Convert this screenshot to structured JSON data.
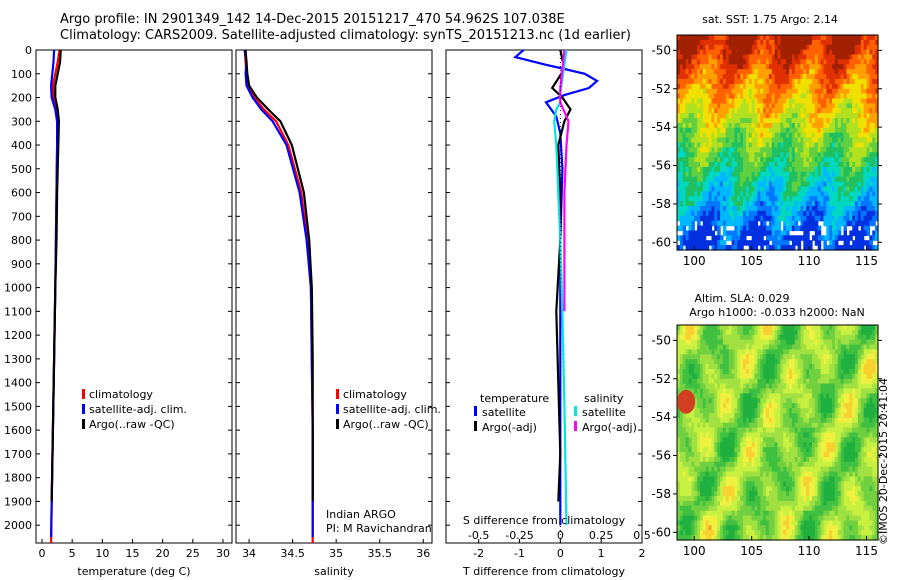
{
  "header": {
    "line1": "Argo profile: IN 2901349_142 14-Dec-2015 20151217_470 54.962S 107.038E",
    "line2": "Climatology: CARS2009. Satellite-adjusted climatology: synTS_20151213.nc (1d earlier)"
  },
  "colors": {
    "clim": "#ff0000",
    "sat": "#0000ff",
    "argo": "#000000",
    "cyan": "#00e5e5",
    "magenta": "#ff00ff"
  },
  "chart_data": [
    {
      "type": "line",
      "name": "temperature-profile",
      "xlabel": "temperature (deg C)",
      "ylabel": "",
      "xlim": [
        -1,
        31.5
      ],
      "ylim": [
        2075,
        0
      ],
      "xticks": [
        "0",
        "5",
        "10",
        "15",
        "20",
        "25",
        "30"
      ],
      "yticks": [
        "0",
        "100",
        "200",
        "300",
        "400",
        "500",
        "600",
        "700",
        "800",
        "900",
        "1000",
        "1100",
        "1200",
        "1300",
        "1400",
        "1500",
        "1600",
        "1700",
        "1800",
        "1900",
        "2000"
      ],
      "legend": {
        "position": "lower-center",
        "entries": [
          "climatology",
          "satellite-adj. clim.",
          "Argo(..raw -QC)"
        ]
      },
      "series": [
        {
          "name": "climatology",
          "color": "#ff0000",
          "x": [
            2.9,
            2.6,
            2.2,
            1.8,
            1.9,
            2.3,
            2.5,
            2.5,
            2.4,
            2.3,
            2.2,
            2.0,
            1.8,
            1.6,
            1.5
          ],
          "y": [
            0,
            50,
            100,
            150,
            200,
            250,
            300,
            400,
            600,
            800,
            1000,
            1300,
            1600,
            1900,
            2075
          ]
        },
        {
          "name": "satellite-adj. clim.",
          "color": "#0000ff",
          "x": [
            2.0,
            1.9,
            1.7,
            1.5,
            1.6,
            2.2,
            2.5,
            2.5,
            2.4,
            2.3,
            2.2,
            2.0,
            1.8,
            1.6,
            1.5
          ],
          "y": [
            0,
            50,
            100,
            150,
            200,
            250,
            300,
            400,
            600,
            800,
            1000,
            1300,
            1600,
            1900,
            2050
          ]
        },
        {
          "name": "Argo(..raw -QC)",
          "color": "#000000",
          "x": [
            3.1,
            3.0,
            2.6,
            2.2,
            2.2,
            2.6,
            2.8,
            2.7,
            2.5,
            2.4,
            2.2,
            2.0,
            1.8,
            1.6
          ],
          "y": [
            0,
            50,
            100,
            150,
            200,
            250,
            300,
            400,
            600,
            800,
            1000,
            1300,
            1600,
            1900
          ]
        }
      ]
    },
    {
      "type": "line",
      "name": "salinity-profile",
      "xlabel": "salinity",
      "xlim": [
        33.85,
        36.1
      ],
      "ylim": [
        2075,
        0
      ],
      "xticks": [
        "34",
        "34.5",
        "35",
        "35.5",
        "36"
      ],
      "legend": {
        "position": "lower-center",
        "entries": [
          "climatology",
          "satellite-adj. clim.",
          "Argo(..raw -QC)"
        ]
      },
      "annotation": [
        "Indian ARGO",
        "PI: M Ravichandran"
      ],
      "series": [
        {
          "name": "climatology",
          "color": "#ff0000",
          "x": [
            33.95,
            33.96,
            33.97,
            33.99,
            34.06,
            34.17,
            34.31,
            34.45,
            34.6,
            34.67,
            34.71,
            34.72,
            34.73,
            34.73,
            34.73
          ],
          "y": [
            0,
            50,
            100,
            150,
            200,
            250,
            300,
            400,
            600,
            800,
            1000,
            1300,
            1600,
            1900,
            2075
          ]
        },
        {
          "name": "satellite-adj. clim.",
          "color": "#0000ff",
          "x": [
            33.95,
            33.97,
            33.96,
            33.97,
            34.04,
            34.14,
            34.27,
            34.43,
            34.58,
            34.66,
            34.71,
            34.72,
            34.73,
            34.73,
            34.73
          ],
          "y": [
            0,
            50,
            100,
            150,
            200,
            250,
            300,
            400,
            600,
            800,
            1000,
            1300,
            1600,
            1900,
            2050
          ]
        },
        {
          "name": "Argo(..raw -QC)",
          "color": "#000000",
          "x": [
            33.96,
            33.97,
            33.98,
            34.0,
            34.09,
            34.22,
            34.36,
            34.49,
            34.63,
            34.69,
            34.72,
            34.73,
            34.73,
            34.73
          ],
          "y": [
            0,
            50,
            100,
            150,
            200,
            250,
            300,
            400,
            600,
            800,
            1000,
            1300,
            1600,
            1900
          ]
        }
      ]
    },
    {
      "type": "line",
      "name": "difference-profile",
      "xlabel": "T difference from climatology",
      "xlabel_top": "S difference from climatology",
      "xlim": [
        -2.8,
        2.0
      ],
      "ylim": [
        2075,
        0
      ],
      "xticks": [
        "-2",
        "-1",
        "0",
        "1",
        "2"
      ],
      "xticks_top": [
        "-0.5",
        "-0.25",
        "0",
        "0.25",
        "0.5"
      ],
      "legend": {
        "position": "lower-center",
        "entries": [
          "temperature",
          "satellite",
          "Argo(-adj)",
          "salinity",
          "satellite",
          "Argo(-adj)"
        ]
      },
      "series": [
        {
          "name": "satellite",
          "color": "#0000ff",
          "x": [
            -0.9,
            -1.1,
            -0.4,
            0.1,
            0.6,
            0.9,
            0.7,
            0.1,
            -0.35,
            -0.1,
            0,
            0.05,
            0,
            0,
            0,
            0
          ],
          "y": [
            0,
            30,
            60,
            80,
            100,
            130,
            160,
            190,
            220,
            280,
            350,
            500,
            800,
            1100,
            1500,
            2000
          ]
        },
        {
          "name": "Argo(-adj)",
          "color": "#000000",
          "x": [
            0,
            0.05,
            0.1,
            -0.05,
            -0.2,
            0.05,
            0.25,
            0.1,
            -0.05,
            0,
            0,
            -0.1,
            -0.05,
            0,
            -0.05
          ],
          "y": [
            0,
            40,
            80,
            120,
            160,
            200,
            250,
            300,
            400,
            600,
            800,
            1100,
            1400,
            1700,
            1900
          ]
        },
        {
          "name": "satellite",
          "color": "#00e5e5",
          "x": [
            0.15,
            0.1,
            0.05,
            0,
            0,
            -0.1,
            -0.15,
            -0.1,
            -0.05,
            0,
            0.05,
            0.1,
            0.15
          ],
          "y": [
            0,
            60,
            120,
            180,
            220,
            250,
            300,
            400,
            600,
            800,
            1100,
            1500,
            2000
          ]
        },
        {
          "name": "Argo(-adj)",
          "color": "#ff00ff",
          "x": [
            0.1,
            0.05,
            0,
            0,
            0.1,
            0.2,
            0.15,
            0.1,
            0.1,
            0.1,
            0.1
          ],
          "y": [
            0,
            80,
            160,
            220,
            260,
            300,
            400,
            600,
            800,
            1000,
            1100
          ]
        }
      ]
    },
    {
      "type": "heatmap",
      "name": "sst-map",
      "title": "sat. SST: 1.75 Argo: 2.14",
      "xlim": [
        98.5,
        116
      ],
      "ylim": [
        -60.4,
        -49.2
      ],
      "xticks": [
        "100",
        "105",
        "110",
        "115"
      ],
      "yticks": [
        "-50",
        "-52",
        "-54",
        "-56",
        "-58",
        "-60"
      ]
    },
    {
      "type": "heatmap",
      "name": "sla-map",
      "title_line1": "Altim. SLA: 0.029",
      "title_line2": "Argo h1000: -0.033 h2000: NaN",
      "xlim": [
        98.5,
        116
      ],
      "ylim": [
        -60.4,
        -49.2
      ],
      "xticks": [
        "100",
        "105",
        "110",
        "115"
      ],
      "yticks": [
        "-50",
        "-52",
        "-54",
        "-56",
        "-58",
        "-60"
      ]
    }
  ],
  "credit": "©IMOS 20-Dec-2015 20:41:04"
}
